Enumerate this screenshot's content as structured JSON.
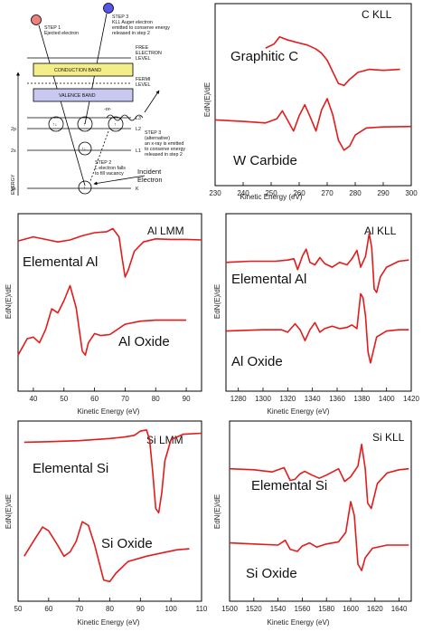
{
  "diagram": {
    "step1": [
      "STEP 1",
      "Ejected electron"
    ],
    "step3": [
      "STEP 3",
      "KLL Auger electron",
      "emitted to conserve energy",
      "released in step 2"
    ],
    "free_level": [
      "FREE",
      "ELECTRON",
      "LEVEL"
    ],
    "fermi_level": [
      "FERMI",
      "LEVEL"
    ],
    "conduction_band": "CONDUCTION BAND",
    "valence_band": "VALENCE BAND",
    "step3_alt": [
      "STEP 3",
      "(alternative)",
      "an x-ray is emitted",
      "to conserve energy",
      "released in step 2"
    ],
    "or_label": "-or-",
    "step2": [
      "STEP 2",
      "L electron falls",
      "to fill vacancy"
    ],
    "incident": [
      "Incident",
      "Electron"
    ],
    "energy_axis": "ENERGY",
    "levels": {
      "L3": "L3",
      "L2": "L2",
      "L1": "L1",
      "K": "K",
      "2p": "2p",
      "2s": "2s",
      "1s": "1s"
    },
    "colors": {
      "conduction": "#f4ee8a",
      "valence": "#c8c8f0",
      "ejected": "#f08080",
      "auger": "#5555ee"
    }
  },
  "chart_data": [
    {
      "type": "line",
      "title": "C KLL",
      "xlabel": "Kinetic Energy (eV)",
      "ylabel": "EdN(E)/dE",
      "xlim": [
        230,
        300
      ],
      "ylim": [
        -1.2,
        2.4
      ],
      "xticks": [
        230,
        240,
        250,
        260,
        270,
        280,
        290,
        300
      ],
      "series": [
        {
          "name": "Graphitic C",
          "points": [
            [
              248,
              1.52
            ],
            [
              251,
              1.6
            ],
            [
              253,
              1.74
            ],
            [
              256,
              1.68
            ],
            [
              260,
              1.62
            ],
            [
              263,
              1.58
            ],
            [
              266,
              1.5
            ],
            [
              268,
              1.42
            ],
            [
              270,
              1.28
            ],
            [
              272,
              1.05
            ],
            [
              274,
              0.82
            ],
            [
              276,
              0.78
            ],
            [
              278,
              0.9
            ],
            [
              281,
              1.04
            ],
            [
              285,
              1.1
            ],
            [
              290,
              1.08
            ],
            [
              296,
              1.1
            ]
          ]
        },
        {
          "name": "W Carbide",
          "points": [
            [
              230,
              0.1
            ],
            [
              240,
              0.07
            ],
            [
              248,
              0.04
            ],
            [
              252,
              0.12
            ],
            [
              254,
              0.28
            ],
            [
              256,
              0.08
            ],
            [
              258,
              -0.12
            ],
            [
              260,
              0.18
            ],
            [
              262,
              0.4
            ],
            [
              264,
              0.15
            ],
            [
              266,
              -0.12
            ],
            [
              268,
              0.3
            ],
            [
              270,
              0.52
            ],
            [
              272,
              0.2
            ],
            [
              274,
              -0.3
            ],
            [
              276,
              -0.5
            ],
            [
              278,
              -0.42
            ],
            [
              280,
              -0.2
            ],
            [
              284,
              -0.06
            ],
            [
              290,
              -0.04
            ],
            [
              300,
              -0.03
            ]
          ]
        }
      ]
    },
    {
      "type": "line",
      "title": "Al LMM",
      "xlabel": "Kinetic Energy (eV)",
      "ylabel": "EdN(E)/dE",
      "xlim": [
        35,
        95
      ],
      "ylim": [
        -1.5,
        1.95
      ],
      "xticks": [
        40,
        50,
        60,
        70,
        80,
        90
      ],
      "series": [
        {
          "name": "Elemental Al",
          "points": [
            [
              35,
              1.42
            ],
            [
              40,
              1.5
            ],
            [
              44,
              1.45
            ],
            [
              48,
              1.4
            ],
            [
              52,
              1.44
            ],
            [
              56,
              1.52
            ],
            [
              60,
              1.58
            ],
            [
              64,
              1.6
            ],
            [
              66,
              1.66
            ],
            [
              68,
              1.5
            ],
            [
              69,
              1.1
            ],
            [
              70,
              0.72
            ],
            [
              71,
              0.85
            ],
            [
              73,
              1.22
            ],
            [
              76,
              1.4
            ],
            [
              80,
              1.46
            ],
            [
              85,
              1.45
            ],
            [
              90,
              1.45
            ],
            [
              95,
              1.44
            ]
          ]
        },
        {
          "name": "Al Oxide",
          "points": [
            [
              35,
              -0.8
            ],
            [
              38,
              -0.48
            ],
            [
              40,
              -0.45
            ],
            [
              42,
              -0.56
            ],
            [
              44,
              -0.3
            ],
            [
              46,
              0.1
            ],
            [
              48,
              0.02
            ],
            [
              50,
              0.26
            ],
            [
              52,
              0.55
            ],
            [
              54,
              0.12
            ],
            [
              56,
              -0.72
            ],
            [
              57,
              -0.8
            ],
            [
              58,
              -0.56
            ],
            [
              60,
              -0.38
            ],
            [
              62,
              -0.42
            ],
            [
              65,
              -0.4
            ],
            [
              70,
              -0.2
            ],
            [
              75,
              -0.14
            ],
            [
              80,
              -0.12
            ],
            [
              85,
              -0.12
            ],
            [
              90,
              -0.12
            ]
          ]
        }
      ]
    },
    {
      "type": "line",
      "title": "Al KLL",
      "xlabel": "Kinetic Energy (eV)",
      "ylabel": "EdN(E)/dE",
      "xlim": [
        1270,
        1420
      ],
      "ylim": [
        -1.4,
        1.55
      ],
      "xticks": [
        1280,
        1300,
        1320,
        1340,
        1360,
        1380,
        1400,
        1420
      ],
      "series": [
        {
          "name": "Elemental Al",
          "points": [
            [
              1270,
              0.74
            ],
            [
              1290,
              0.76
            ],
            [
              1310,
              0.76
            ],
            [
              1320,
              0.78
            ],
            [
              1325,
              0.8
            ],
            [
              1328,
              0.62
            ],
            [
              1332,
              0.85
            ],
            [
              1335,
              0.96
            ],
            [
              1338,
              0.74
            ],
            [
              1342,
              0.7
            ],
            [
              1346,
              0.82
            ],
            [
              1350,
              0.72
            ],
            [
              1356,
              0.66
            ],
            [
              1362,
              0.74
            ],
            [
              1368,
              0.7
            ],
            [
              1372,
              0.8
            ],
            [
              1376,
              0.94
            ],
            [
              1379,
              0.66
            ],
            [
              1383,
              0.84
            ],
            [
              1386,
              1.22
            ],
            [
              1388,
              0.98
            ],
            [
              1390,
              0.3
            ],
            [
              1392,
              0.24
            ],
            [
              1395,
              0.5
            ],
            [
              1400,
              0.66
            ],
            [
              1410,
              0.76
            ],
            [
              1418,
              0.78
            ]
          ]
        },
        {
          "name": "Al Oxide",
          "points": [
            [
              1270,
              -0.4
            ],
            [
              1300,
              -0.38
            ],
            [
              1315,
              -0.38
            ],
            [
              1320,
              -0.42
            ],
            [
              1326,
              -0.28
            ],
            [
              1330,
              -0.38
            ],
            [
              1334,
              -0.56
            ],
            [
              1338,
              -0.38
            ],
            [
              1342,
              -0.26
            ],
            [
              1346,
              -0.42
            ],
            [
              1350,
              -0.36
            ],
            [
              1356,
              -0.32
            ],
            [
              1362,
              -0.36
            ],
            [
              1368,
              -0.34
            ],
            [
              1372,
              -0.3
            ],
            [
              1376,
              -0.36
            ],
            [
              1379,
              0.22
            ],
            [
              1381,
              0.15
            ],
            [
              1383,
              -0.15
            ],
            [
              1385,
              -0.75
            ],
            [
              1387,
              -0.93
            ],
            [
              1389,
              -0.76
            ],
            [
              1392,
              -0.5
            ],
            [
              1400,
              -0.4
            ],
            [
              1410,
              -0.38
            ],
            [
              1418,
              -0.38
            ]
          ]
        }
      ]
    },
    {
      "type": "line",
      "title": "Si LMM",
      "xlabel": "Kinetic Energy (eV)",
      "ylabel": "EdN(E)/dE",
      "xlim": [
        50,
        110
      ],
      "ylim": [
        -1.75,
        1.65
      ],
      "xticks": [
        50,
        60,
        70,
        80,
        90,
        100,
        110
      ],
      "series": [
        {
          "name": "Elemental Si",
          "points": [
            [
              52,
              1.25
            ],
            [
              60,
              1.26
            ],
            [
              70,
              1.28
            ],
            [
              80,
              1.32
            ],
            [
              85,
              1.35
            ],
            [
              88,
              1.38
            ],
            [
              90,
              1.46
            ],
            [
              92,
              1.48
            ],
            [
              93,
              1.3
            ],
            [
              94,
              0.7
            ],
            [
              95,
              0.0
            ],
            [
              96,
              -0.08
            ],
            [
              97,
              0.3
            ],
            [
              98,
              0.9
            ],
            [
              100,
              1.3
            ],
            [
              104,
              1.4
            ],
            [
              110,
              1.42
            ]
          ]
        },
        {
          "name": "Si Oxide",
          "points": [
            [
              52,
              -0.9
            ],
            [
              55,
              -0.62
            ],
            [
              58,
              -0.35
            ],
            [
              60,
              -0.42
            ],
            [
              63,
              -0.7
            ],
            [
              65,
              -0.9
            ],
            [
              67,
              -0.82
            ],
            [
              69,
              -0.62
            ],
            [
              71,
              -0.25
            ],
            [
              73,
              -0.32
            ],
            [
              75,
              -0.68
            ],
            [
              78,
              -1.35
            ],
            [
              80,
              -1.38
            ],
            [
              82,
              -1.22
            ],
            [
              86,
              -1.0
            ],
            [
              92,
              -0.9
            ],
            [
              97,
              -0.84
            ],
            [
              102,
              -0.78
            ],
            [
              106,
              -0.76
            ]
          ]
        }
      ]
    },
    {
      "type": "line",
      "title": "Si KLL",
      "xlabel": "Kinetic Energy (eV)",
      "ylabel": "EdN(E)/dE",
      "xlim": [
        1500,
        1650
      ],
      "ylim": [
        -1.6,
        1.8
      ],
      "xticks": [
        1500,
        1520,
        1540,
        1560,
        1580,
        1600,
        1620,
        1640
      ],
      "series": [
        {
          "name": "Elemental Si",
          "points": [
            [
              1500,
              0.9
            ],
            [
              1520,
              0.88
            ],
            [
              1535,
              0.84
            ],
            [
              1545,
              0.92
            ],
            [
              1550,
              0.68
            ],
            [
              1554,
              0.7
            ],
            [
              1558,
              0.8
            ],
            [
              1562,
              0.85
            ],
            [
              1568,
              0.78
            ],
            [
              1574,
              0.72
            ],
            [
              1580,
              0.78
            ],
            [
              1590,
              0.9
            ],
            [
              1595,
              0.66
            ],
            [
              1600,
              0.75
            ],
            [
              1606,
              0.95
            ],
            [
              1609,
              1.36
            ],
            [
              1612,
              0.9
            ],
            [
              1614,
              0.25
            ],
            [
              1617,
              0.15
            ],
            [
              1622,
              0.62
            ],
            [
              1630,
              0.82
            ],
            [
              1640,
              0.88
            ],
            [
              1648,
              0.9
            ]
          ]
        },
        {
          "name": "Si Oxide",
          "points": [
            [
              1500,
              -0.5
            ],
            [
              1520,
              -0.52
            ],
            [
              1540,
              -0.54
            ],
            [
              1546,
              -0.45
            ],
            [
              1550,
              -0.62
            ],
            [
              1556,
              -0.66
            ],
            [
              1560,
              -0.56
            ],
            [
              1566,
              -0.5
            ],
            [
              1572,
              -0.58
            ],
            [
              1580,
              -0.52
            ],
            [
              1590,
              -0.48
            ],
            [
              1596,
              -0.3
            ],
            [
              1600,
              0.28
            ],
            [
              1603,
              0.02
            ],
            [
              1606,
              -0.9
            ],
            [
              1609,
              -1.02
            ],
            [
              1612,
              -0.78
            ],
            [
              1618,
              -0.6
            ],
            [
              1630,
              -0.54
            ],
            [
              1648,
              -0.54
            ]
          ]
        }
      ]
    }
  ]
}
